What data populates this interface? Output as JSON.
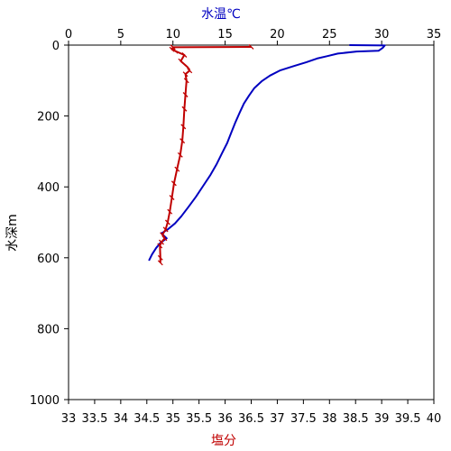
{
  "chart_data": {
    "type": "line",
    "title": "",
    "axes": {
      "depth": {
        "label": "水深m",
        "range": [
          0,
          1000
        ],
        "inverted": true,
        "ticks": [
          0,
          200,
          400,
          600,
          800,
          1000
        ]
      },
      "temperature": {
        "label": "水温℃",
        "position": "top",
        "range": [
          0,
          35
        ],
        "ticks": [
          0,
          5,
          10,
          15,
          20,
          25,
          30,
          35
        ],
        "color": "#0000c0"
      },
      "salinity": {
        "label": "塩分",
        "position": "bottom",
        "range": [
          33,
          40
        ],
        "ticks": [
          "33",
          "33.5",
          "34",
          "34.5",
          "35",
          "35.5",
          "36",
          "36.5",
          "37",
          "37.5",
          "38",
          "38.5",
          "39",
          "39.5",
          "40"
        ],
        "color": "#c00000"
      }
    },
    "grid": false,
    "series": [
      {
        "axis": "temperature",
        "color": "#0000c0",
        "points": [
          [
            26.9,
            0
          ],
          [
            30.3,
            1
          ],
          [
            30.1,
            8
          ],
          [
            29.7,
            16
          ],
          [
            27.6,
            18
          ],
          [
            25.8,
            24
          ],
          [
            24.8,
            31
          ],
          [
            23.8,
            38
          ],
          [
            22.8,
            48
          ],
          [
            21.6,
            59
          ],
          [
            20.3,
            71
          ],
          [
            19.3,
            86
          ],
          [
            18.5,
            102
          ],
          [
            17.8,
            121
          ],
          [
            17.3,
            142
          ],
          [
            16.8,
            165
          ],
          [
            16.4,
            190
          ],
          [
            16.0,
            217
          ],
          [
            15.6,
            246
          ],
          [
            15.2,
            276
          ],
          [
            14.7,
            305
          ],
          [
            14.2,
            335
          ],
          [
            13.6,
            366
          ],
          [
            12.9,
            397
          ],
          [
            12.2,
            428
          ],
          [
            11.5,
            456
          ],
          [
            10.8,
            483
          ],
          [
            10.2,
            503
          ],
          [
            9.5,
            520
          ],
          [
            8.9,
            531
          ],
          [
            9.4,
            545
          ],
          [
            8.8,
            558
          ],
          [
            8.4,
            572
          ],
          [
            8.0,
            590
          ],
          [
            7.7,
            608
          ]
        ]
      },
      {
        "axis": "salinity",
        "color": "#c00000",
        "points": [
          [
            36.5,
            5
          ],
          [
            35.0,
            6
          ],
          [
            34.98,
            12
          ],
          [
            35.05,
            17
          ],
          [
            35.22,
            28
          ],
          [
            35.15,
            45
          ],
          [
            35.28,
            62
          ],
          [
            35.32,
            72
          ],
          [
            35.24,
            82
          ],
          [
            35.26,
            100
          ],
          [
            35.24,
            140
          ],
          [
            35.22,
            180
          ],
          [
            35.2,
            230
          ],
          [
            35.18,
            270
          ],
          [
            35.14,
            310
          ],
          [
            35.08,
            350
          ],
          [
            35.02,
            390
          ],
          [
            34.98,
            430
          ],
          [
            34.94,
            470
          ],
          [
            34.9,
            500
          ],
          [
            34.86,
            520
          ],
          [
            34.8,
            535
          ],
          [
            34.84,
            545
          ],
          [
            34.78,
            556
          ],
          [
            34.75,
            566
          ],
          [
            34.76,
            600
          ],
          [
            34.76,
            614
          ]
        ]
      }
    ]
  }
}
